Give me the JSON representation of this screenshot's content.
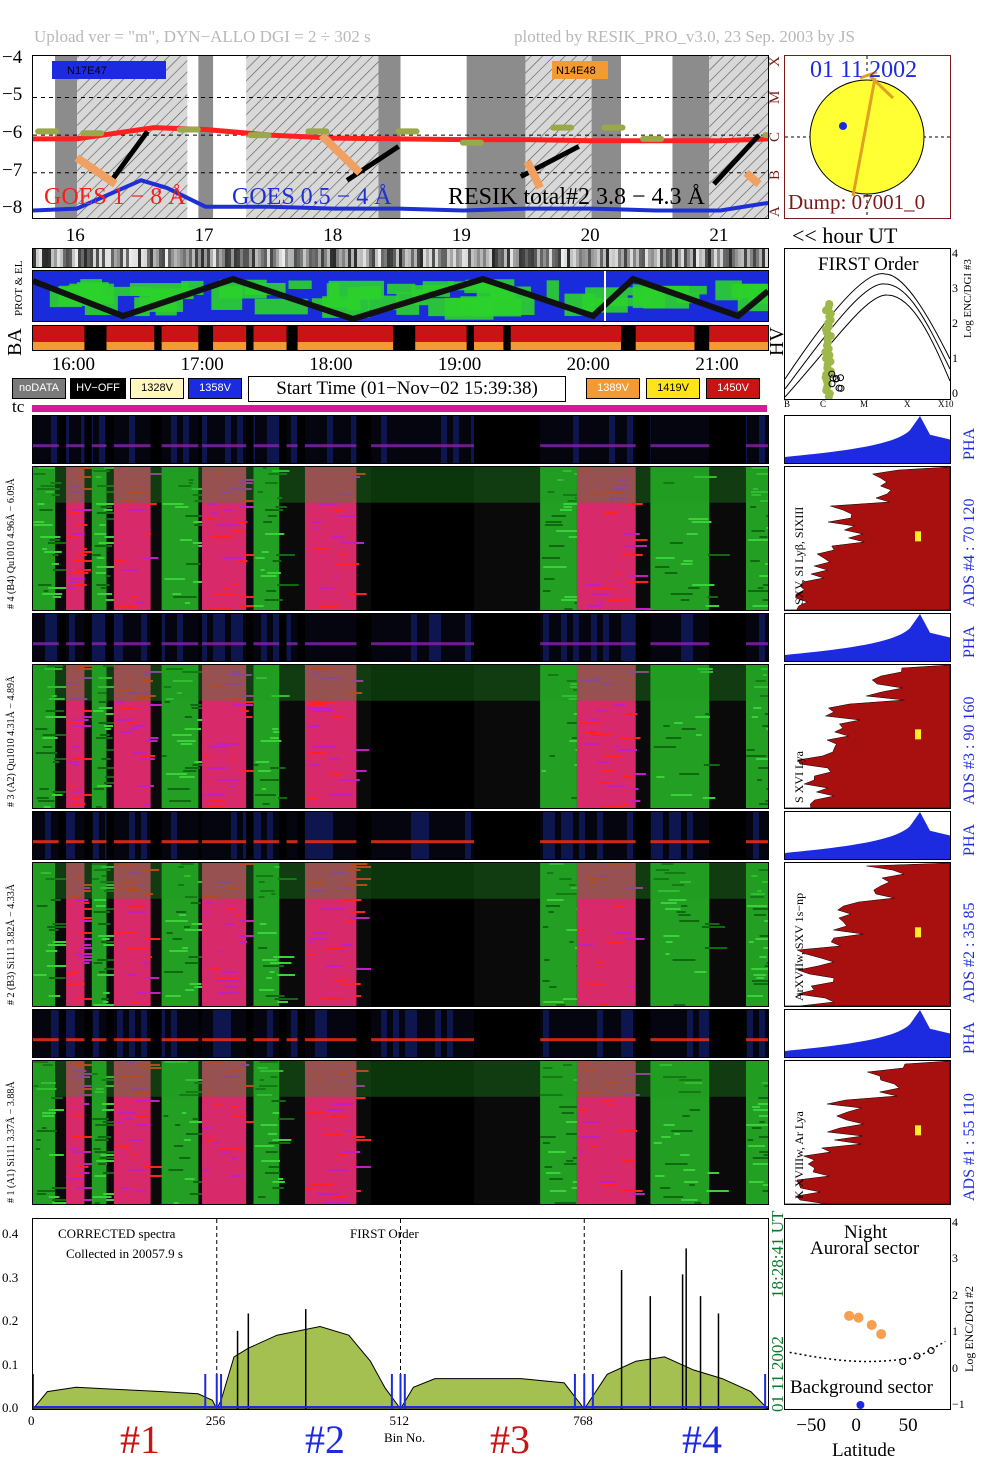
{
  "header": {
    "left": "Upload ver = \"m\", DYN−ALLO DGI =   2 ÷ 302 s",
    "right": "plotted by RESIK_PRO_v3.0, 23 Sep. 2003 by JS"
  },
  "goes_panel": {
    "y_ticks": [
      "−4",
      "−5",
      "−6",
      "−7",
      "−8"
    ],
    "class_letters": [
      "X",
      "M",
      "C",
      "B",
      "A"
    ],
    "label_goes_long": "GOES 1 − 8 Å",
    "label_goes_short": "GOES 0.5 − 4 Å",
    "label_resik": "RESIK total#2  3.8 − 4.3 Å",
    "tag_left": "N17E47",
    "tag_right": "N14E48",
    "colors": {
      "goes_long": "#ff2020",
      "goes_short": "#1f2fd6",
      "resik": "#000000",
      "shade": "#8c8c8c",
      "orbit": "#9aa84a"
    }
  },
  "hour_axis": {
    "ticks": [
      "16",
      "17",
      "18",
      "19",
      "20",
      "21"
    ],
    "label": "<< hour UT",
    "ticks_time": [
      "16:00",
      "17:00",
      "18:00",
      "19:00",
      "20:00",
      "21:00"
    ]
  },
  "sun_panel": {
    "date": "01 11 2002",
    "dump": "Dump: 07001_0"
  },
  "status_labels": {
    "prot_el": "PROT & EL",
    "ba": "BA",
    "hv": "HV",
    "tc": "tc"
  },
  "first_order_panel": {
    "title": "FIRST Order",
    "ylabel": "Log ENC/DGI #3",
    "y_ticks": [
      "4",
      "3",
      "2",
      "1",
      "0"
    ],
    "x_ticks": [
      "B",
      "C",
      "M",
      "X",
      "X10"
    ]
  },
  "legend": {
    "left": [
      {
        "label": "noDATA",
        "bg": "#7a7a7a",
        "fg": "#ffffff"
      },
      {
        "label": "HV−OFF",
        "bg": "#000000",
        "fg": "#ffffff"
      },
      {
        "label": "1328V",
        "bg": "#fff6c0",
        "fg": "#000000"
      },
      {
        "label": "1358V",
        "bg": "#1d2be0",
        "fg": "#ffffff"
      }
    ],
    "start_time": "Start Time (01−Nov−02 15:39:38)",
    "right": [
      {
        "label": "1389V",
        "bg": "#f59a32",
        "fg": "#ffffff"
      },
      {
        "label": "1419V",
        "bg": "#ffe41a",
        "fg": "#000000"
      },
      {
        "label": "1450V",
        "bg": "#c81414",
        "fg": "#ffffff"
      }
    ]
  },
  "detectors": [
    {
      "pha_label": "# 4 (B4) Qu1010 4.96Å − 6.09Å",
      "ads": "ADS #4 :   70 120",
      "lines": "SXV, SI Lyβ, SIXIII",
      "pha": "PHA"
    },
    {
      "pha_label": "# 3 (A2) Qu1010 4.31Å − 4.89Å",
      "ads": "ADS #3 :   90 160",
      "lines": "S XVI Lya",
      "pha": "PHA"
    },
    {
      "pha_label": "# 2 (B3) Si111 3.82Å − 4.33Å",
      "ads": "ADS #2 :   35 85",
      "lines": "ArXVIIw, SXV 1s−np",
      "pha": "PHA"
    },
    {
      "pha_label": "# 1 (A1) Si111 3.37Å − 3.88Å",
      "ads": "ADS #1 :   55 110",
      "lines": "K XVIIIw, Ar Lya",
      "pha": "PHA"
    }
  ],
  "spectrum_panel": {
    "text1": "CORRECTED spectra",
    "text2": "Collected in 20057.9 s",
    "text3": "FIRST Order",
    "side_date": "01 11 2002",
    "side_time": "18:28:41 UT",
    "y_ticks": [
      "0.4",
      "0.3",
      "0.2",
      "0.1",
      "0.0"
    ],
    "x_ticks": [
      "0",
      "256",
      "512",
      "768"
    ],
    "xlabel": "Bin No.",
    "sections": [
      "#1",
      "#2",
      "#3",
      "#4"
    ]
  },
  "latitude_panel": {
    "title1": "Night",
    "title2": "Auroral sector",
    "bottom": "Background sector",
    "ylabel": "Log ENC/DGI #2",
    "xlabel": "Latitude",
    "x_ticks": [
      "−50",
      "0",
      "50"
    ],
    "y_ticks": [
      "4",
      "3",
      "2",
      "1",
      "0",
      "−1"
    ]
  },
  "chart_data": [
    {
      "type": "line",
      "title": "",
      "xlabel": "hour UT",
      "ylabel": "",
      "xlim": [
        15.66,
        21.37
      ],
      "ylim": [
        -8.2,
        -3.9
      ],
      "series": [
        {
          "name": "GOES 1 − 8 Å",
          "x": [
            15.66,
            16.0,
            16.3,
            16.6,
            17.0,
            17.5,
            18.0,
            18.5,
            19.0,
            19.5,
            20.0,
            20.5,
            21.0,
            21.37
          ],
          "values": [
            -6.1,
            -6.1,
            -5.95,
            -5.8,
            -5.85,
            -6.0,
            -6.08,
            -6.1,
            -6.12,
            -6.12,
            -6.15,
            -6.15,
            -6.15,
            -6.1
          ]
        },
        {
          "name": "GOES 0.5 − 4 Å",
          "x": [
            15.66,
            16.0,
            16.3,
            16.5,
            16.7,
            17.0,
            17.5,
            18.0,
            18.5,
            19.0,
            19.5,
            20.0,
            20.5,
            21.0,
            21.37
          ],
          "values": [
            -8.0,
            -7.95,
            -7.5,
            -7.2,
            -7.4,
            -7.9,
            -7.9,
            -7.95,
            -7.95,
            -8.0,
            -7.95,
            -7.95,
            -8.0,
            -8.0,
            -7.8
          ]
        }
      ]
    },
    {
      "type": "area",
      "title": "",
      "xlabel": "Bin No.",
      "ylabel": "",
      "xlim": [
        0,
        1024
      ],
      "ylim": [
        0,
        0.42
      ],
      "x": [
        0,
        20,
        60,
        120,
        180,
        230,
        250,
        256,
        262,
        280,
        300,
        340,
        400,
        440,
        470,
        490,
        512,
        530,
        560,
        620,
        680,
        740,
        768,
        780,
        800,
        840,
        880,
        920,
        960,
        1000,
        1024
      ],
      "values": [
        0.0,
        0.04,
        0.05,
        0.045,
        0.04,
        0.035,
        0.02,
        0.0,
        0.02,
        0.12,
        0.14,
        0.17,
        0.19,
        0.17,
        0.11,
        0.05,
        0.0,
        0.05,
        0.07,
        0.07,
        0.07,
        0.06,
        0.0,
        0.03,
        0.08,
        0.11,
        0.12,
        0.09,
        0.07,
        0.04,
        0.0
      ],
      "series": [
        {
          "name": "",
          "values": [
            0.0,
            0.04,
            0.05,
            0.045,
            0.04,
            0.035,
            0.02,
            0.0,
            0.02,
            0.12,
            0.14,
            0.17,
            0.19,
            0.17,
            0.11,
            0.05,
            0.0,
            0.05,
            0.07,
            0.07,
            0.07,
            0.06,
            0.0,
            0.03,
            0.08,
            0.11,
            0.12,
            0.09,
            0.07,
            0.04,
            0.0
          ]
        }
      ]
    },
    {
      "type": "scatter",
      "title": "",
      "xlabel": "Latitude",
      "ylabel": "Log ENC/DGI #2",
      "xlim": [
        -80,
        95
      ],
      "ylim": [
        -1.1,
        4.1
      ],
      "series": [
        {
          "name": "",
          "x": [
            -12,
            -2,
            12,
            22
          ],
          "values": [
            1.45,
            1.4,
            1.2,
            0.95
          ]
        },
        {
          "name": "",
          "x": [
            45,
            60,
            75
          ],
          "values": [
            0.2,
            0.35,
            0.5
          ]
        }
      ]
    }
  ]
}
